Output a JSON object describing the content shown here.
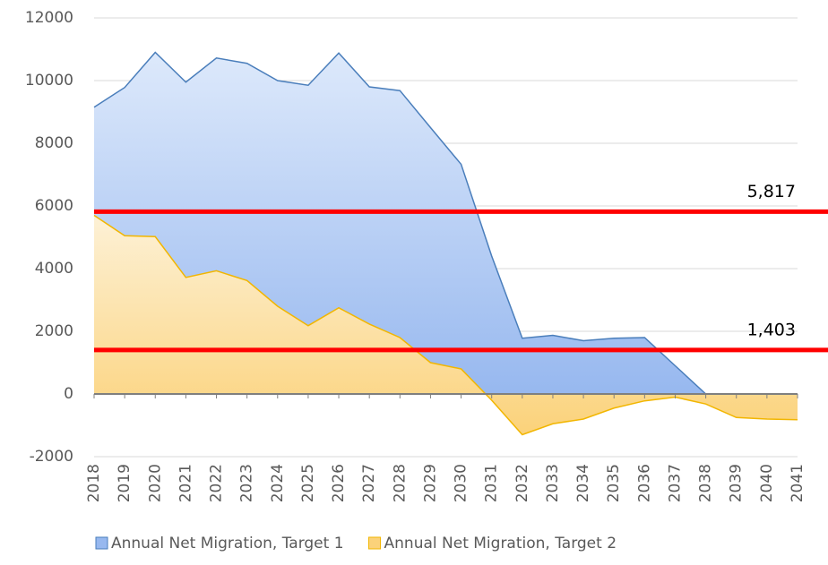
{
  "chart_data": {
    "type": "area",
    "categories": [
      "2018",
      "2019",
      "2020",
      "2021",
      "2022",
      "2023",
      "2024",
      "2025",
      "2026",
      "2027",
      "2028",
      "2029",
      "2030",
      "2031",
      "2032",
      "2033",
      "2034",
      "2035",
      "2036",
      "2037",
      "2038",
      "2039",
      "2040",
      "2041"
    ],
    "series": [
      {
        "name": "Annual Net Migration, Target 1",
        "color": "#4a7ebb",
        "fill": [
          "#dde9fb",
          "#97b8ef"
        ],
        "values": [
          9150,
          9780,
          10900,
          9950,
          10720,
          10550,
          10000,
          9850,
          10880,
          9800,
          9680,
          8500,
          7330,
          4400,
          1780,
          1870,
          1700,
          1780,
          1800,
          900,
          0,
          0,
          0,
          0
        ]
      },
      {
        "name": "Annual Net Migration, Target 2",
        "color": "#f2b600",
        "fill": [
          "#fdf1d6",
          "#fbd27a"
        ],
        "values": [
          5700,
          5050,
          5020,
          3720,
          3930,
          3620,
          2800,
          2180,
          2750,
          2230,
          1800,
          1000,
          800,
          -200,
          -1300,
          -950,
          -800,
          -450,
          -220,
          -100,
          -320,
          -750,
          -800,
          -820
        ]
      }
    ],
    "reference_lines": [
      {
        "value": 5817,
        "label": "5,817",
        "color": "#ff0000"
      },
      {
        "value": 1403,
        "label": "1,403",
        "color": "#ff0000"
      }
    ],
    "ylim": [
      -2000,
      12000
    ],
    "yticks": [
      -2000,
      0,
      2000,
      4000,
      6000,
      8000,
      10000,
      12000
    ],
    "grid": true
  }
}
